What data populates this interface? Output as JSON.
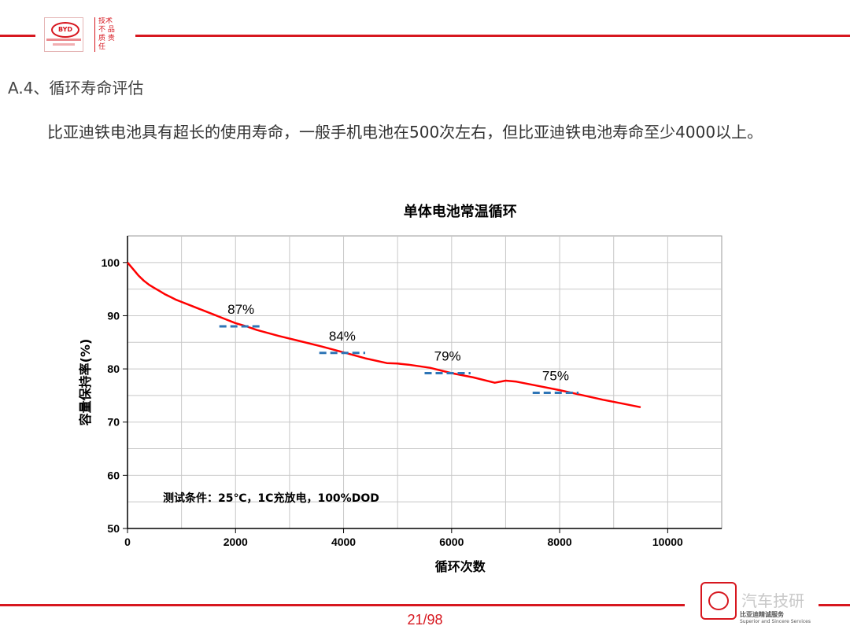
{
  "header": {
    "logo_text": "BYD",
    "seal_text": "技术 不 品质 责任"
  },
  "section_title": "A.4、循环寿命评估",
  "paragraph": "比亚迪铁电池具有超长的使用寿命，一般手机电池在500次左右，但比亚迪铁电池寿命至少4000以上。",
  "chart_data": {
    "type": "line",
    "title": "单体电池常温循环",
    "xlabel": "循环次数",
    "ylabel": "容量保持率(%)",
    "xlim": [
      0,
      11000
    ],
    "ylim": [
      50,
      105
    ],
    "x_ticks": [
      0,
      2000,
      4000,
      6000,
      8000,
      10000
    ],
    "y_ticks": [
      50,
      60,
      70,
      80,
      90,
      100
    ],
    "grid": true,
    "series": [
      {
        "color": "#ff0000",
        "x": [
          0,
          100,
          200,
          300,
          400,
          500,
          600,
          700,
          800,
          900,
          1000,
          1200,
          1400,
          1600,
          1800,
          2000,
          2200,
          2400,
          2800,
          3200,
          3600,
          4000,
          4400,
          4800,
          5000,
          5200,
          5600,
          6000,
          6400,
          6800,
          7000,
          7200,
          7600,
          8000,
          8400,
          8800,
          9200,
          9500
        ],
        "y": [
          100,
          98.8,
          97.6,
          96.6,
          95.8,
          95.2,
          94.6,
          94,
          93.5,
          93,
          92.6,
          91.8,
          91,
          90.2,
          89.4,
          88.6,
          88,
          87.3,
          86.2,
          85.2,
          84.2,
          83.1,
          82,
          81.1,
          81,
          80.8,
          80.2,
          79.2,
          78.4,
          77.4,
          77.8,
          77.6,
          76.8,
          76,
          75.1,
          74.2,
          73.4,
          72.8
        ]
      }
    ],
    "reference_markers": [
      {
        "label": "87%",
        "y": 88,
        "x_range": [
          1700,
          2500
        ]
      },
      {
        "label": "84%",
        "y": 83,
        "x_range": [
          3550,
          4400
        ]
      },
      {
        "label": "79%",
        "y": 79.2,
        "x_range": [
          5500,
          6350
        ]
      },
      {
        "label": "75%",
        "y": 75.5,
        "x_range": [
          7500,
          8350
        ]
      }
    ],
    "marker_color": "#2e75b6",
    "annotation": "测试条件：25℃，1C充放电，100%DOD"
  },
  "footer": {
    "page_number": "21/98",
    "watermark_text": "汽车技研",
    "watermark_sub": "比亚迪精诚服务",
    "watermark_sub2": "Superior and Sincere Services"
  }
}
